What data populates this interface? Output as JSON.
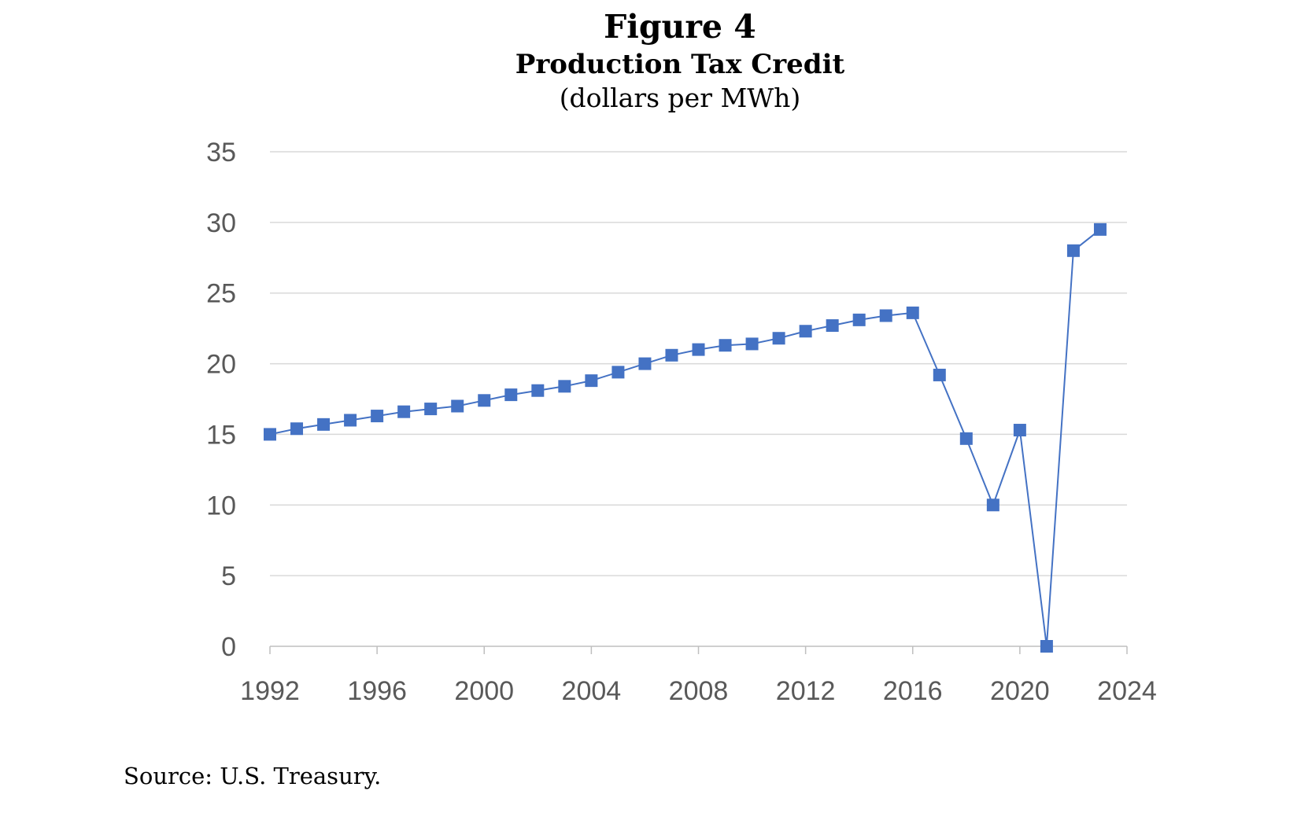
{
  "figure_number": "Figure 4",
  "source": "Source: U.S. Treasury.",
  "colors": {
    "series": "#4472c4",
    "grid": "#d9d9d9",
    "axis": "#bfbfbf",
    "tick_text": "#595959"
  },
  "chart_data": {
    "type": "line",
    "title": "Production Tax Credit",
    "subtitle": "(dollars per MWh)",
    "xlabel": "",
    "ylabel": "",
    "xlim": [
      1992,
      2024
    ],
    "ylim": [
      0,
      35
    ],
    "x_ticks": [
      "1992",
      "1996",
      "2000",
      "2004",
      "2008",
      "2012",
      "2016",
      "2020",
      "2024"
    ],
    "y_ticks": [
      "0",
      "5",
      "10",
      "15",
      "20",
      "25",
      "30",
      "35"
    ],
    "grid": true,
    "legend": "none",
    "marker": "square",
    "series": [
      {
        "x": [
          1992,
          1993,
          1994,
          1995,
          1996,
          1997,
          1998,
          1999,
          2000,
          2001,
          2002,
          2003,
          2004,
          2005,
          2006,
          2007,
          2008,
          2009,
          2010,
          2011,
          2012,
          2013,
          2014,
          2015,
          2016,
          2017,
          2018,
          2019,
          2020,
          2021,
          2022,
          2023
        ],
        "values": [
          15.0,
          15.4,
          15.7,
          16.0,
          16.3,
          16.6,
          16.8,
          17.0,
          17.4,
          17.8,
          18.1,
          18.4,
          18.8,
          19.4,
          20.0,
          20.6,
          21.0,
          21.3,
          21.4,
          21.8,
          22.3,
          22.7,
          23.1,
          23.4,
          23.6,
          19.2,
          14.7,
          10.0,
          15.3,
          0.0,
          28.0,
          29.5
        ]
      }
    ]
  }
}
